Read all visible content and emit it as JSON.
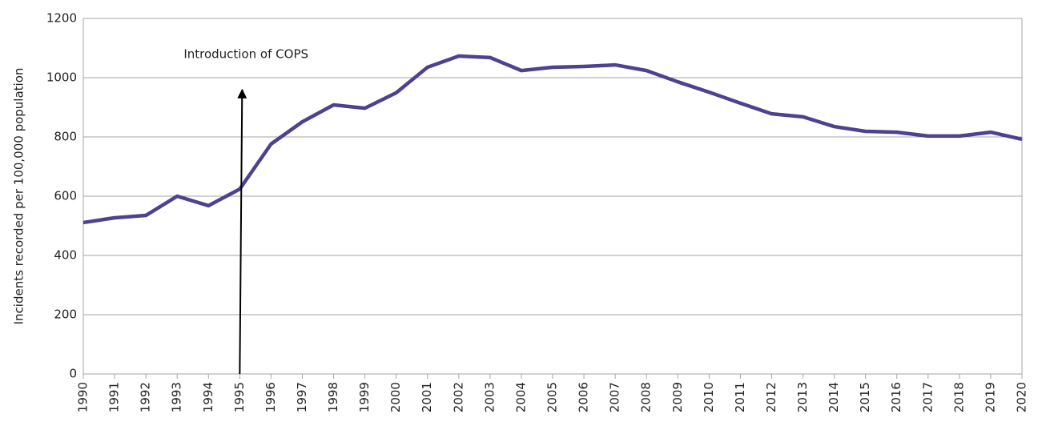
{
  "chart_data": {
    "type": "line",
    "y_label": "Incidents recorded per 100,000 population",
    "annotation": {
      "text": "Introduction of COPS",
      "x": 1995
    },
    "x": [
      1990,
      1991,
      1992,
      1993,
      1994,
      1995,
      1996,
      1997,
      1998,
      1999,
      2000,
      2001,
      2002,
      2003,
      2004,
      2005,
      2006,
      2007,
      2008,
      2009,
      2010,
      2011,
      2012,
      2013,
      2014,
      2015,
      2016,
      2017,
      2018,
      2019,
      2020
    ],
    "series": [
      {
        "color": "#4e4190",
        "values": [
          511,
          527,
          535,
          600,
          568,
          624,
          776,
          851,
          908,
          897,
          949,
          1035,
          1073,
          1068,
          1024,
          1035,
          1038,
          1043,
          1024,
          986,
          951,
          914,
          878,
          868,
          835,
          819,
          816,
          803,
          803,
          816,
          792
        ]
      }
    ],
    "xlim": [
      1990,
      2020
    ],
    "xticks": [
      1990,
      1991,
      1992,
      1993,
      1994,
      1995,
      1996,
      1997,
      1998,
      1999,
      2000,
      2001,
      2002,
      2003,
      2004,
      2005,
      2006,
      2007,
      2008,
      2009,
      2010,
      2011,
      2012,
      2013,
      2014,
      2015,
      2016,
      2017,
      2018,
      2019,
      2020
    ],
    "ylim": [
      0,
      1200
    ],
    "yticks": [
      0,
      200,
      400,
      600,
      800,
      1000,
      1200
    ],
    "grid": true
  }
}
